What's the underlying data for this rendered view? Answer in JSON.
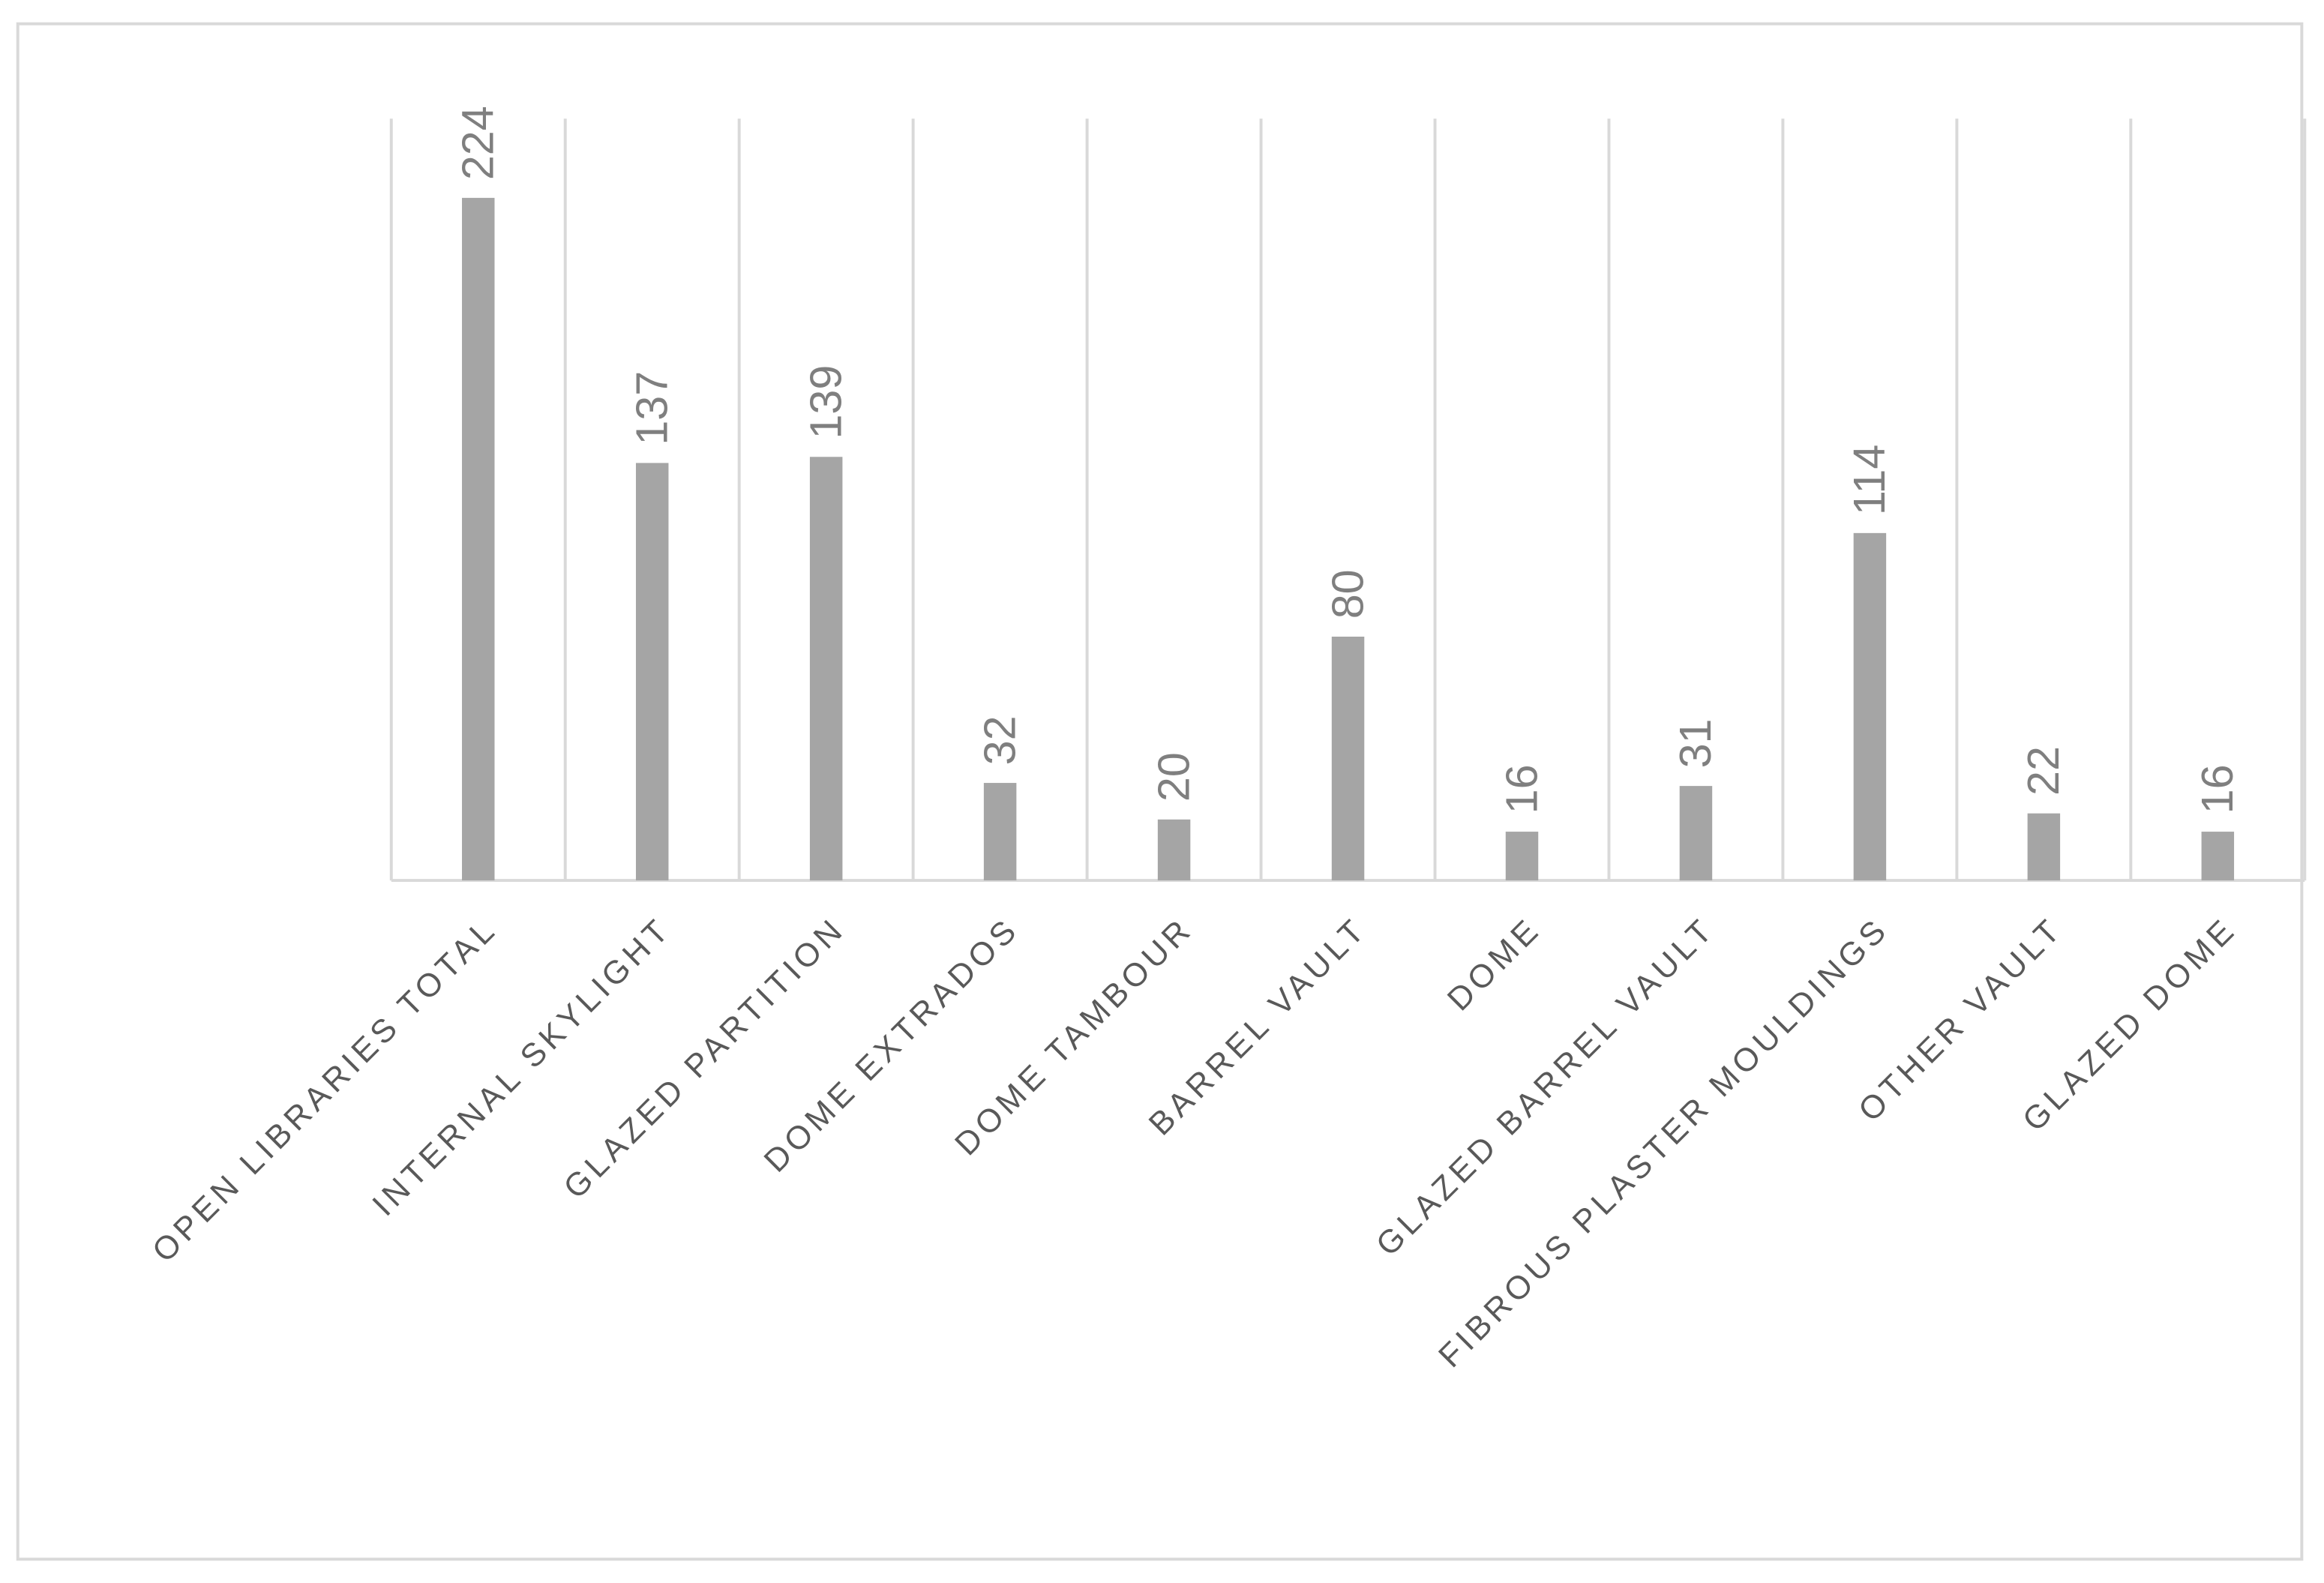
{
  "chart_data": {
    "type": "bar",
    "categories": [
      "OPEN LIBRARIES TOTAL",
      "INTERNAL SKYLIGHT",
      "GLAZED PARTITION",
      "DOME EXTRADOS",
      "DOME TAMBOUR",
      "BARREL VAULT",
      "DOME",
      "GLAZED BARREL VAULT",
      "FIBROUS PLASTER MOULDINGS",
      "OTHER VAULT",
      "GLAZED DOME"
    ],
    "values": [
      224,
      137,
      139,
      32,
      20,
      80,
      16,
      31,
      114,
      22,
      16
    ],
    "color": "#a5a5a5",
    "ylim": [
      0,
      250
    ]
  }
}
